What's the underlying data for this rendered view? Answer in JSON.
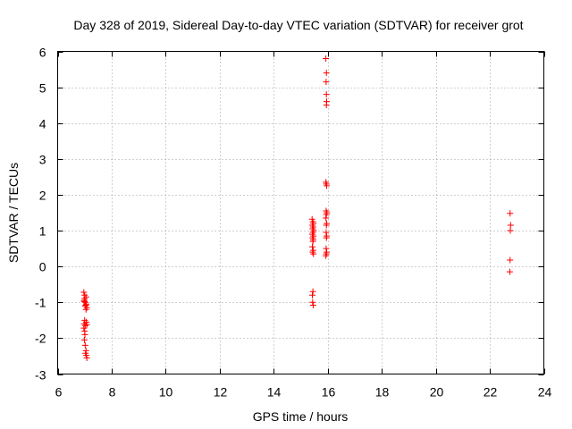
{
  "chart_data": {
    "type": "scatter",
    "title": "Day 328 of 2019, Sidereal Day-to-day VTEC variation (SDTVAR) for receiver grot",
    "xlabel": "GPS time / hours",
    "ylabel": "SDTVAR / TECUs",
    "xlim": [
      6,
      24
    ],
    "ylim": [
      -3,
      6
    ],
    "xticks": [
      6,
      8,
      10,
      12,
      14,
      16,
      18,
      20,
      22,
      24
    ],
    "yticks": [
      -3,
      -2,
      -1,
      0,
      1,
      2,
      3,
      4,
      5,
      6
    ],
    "grid": true,
    "marker": "+",
    "color": "#ff0000",
    "series": [
      {
        "name": "SDTVAR",
        "points": [
          [
            6.97,
            -0.72
          ],
          [
            7.0,
            -0.8
          ],
          [
            7.05,
            -0.85
          ],
          [
            7.0,
            -0.9
          ],
          [
            6.98,
            -0.95
          ],
          [
            7.03,
            -1.0
          ],
          [
            7.06,
            -1.05
          ],
          [
            7.02,
            -1.1
          ],
          [
            7.08,
            -1.15
          ],
          [
            7.05,
            -1.2
          ],
          [
            6.99,
            -0.98
          ],
          [
            7.04,
            -1.08
          ],
          [
            7.0,
            -1.5
          ],
          [
            6.98,
            -1.6
          ],
          [
            7.02,
            -1.65
          ],
          [
            7.06,
            -1.55
          ],
          [
            7.08,
            -1.62
          ],
          [
            6.97,
            -1.72
          ],
          [
            7.0,
            -1.8
          ],
          [
            7.01,
            -1.9
          ],
          [
            6.99,
            -2.05
          ],
          [
            7.02,
            -2.2
          ],
          [
            7.05,
            -2.35
          ],
          [
            7.03,
            -2.42
          ],
          [
            7.06,
            -2.48
          ],
          [
            7.08,
            -2.55
          ],
          [
            15.42,
            1.32
          ],
          [
            15.45,
            1.25
          ],
          [
            15.47,
            1.2
          ],
          [
            15.43,
            1.15
          ],
          [
            15.46,
            1.1
          ],
          [
            15.44,
            1.05
          ],
          [
            15.48,
            1.0
          ],
          [
            15.45,
            0.95
          ],
          [
            15.43,
            0.9
          ],
          [
            15.47,
            0.85
          ],
          [
            15.44,
            0.8
          ],
          [
            15.46,
            0.75
          ],
          [
            15.45,
            0.7
          ],
          [
            15.43,
            0.55
          ],
          [
            15.46,
            0.45
          ],
          [
            15.44,
            0.4
          ],
          [
            15.47,
            0.35
          ],
          [
            15.45,
            -0.7
          ],
          [
            15.43,
            -0.8
          ],
          [
            15.44,
            -1.0
          ],
          [
            15.46,
            -1.08
          ],
          [
            15.93,
            5.8
          ],
          [
            15.95,
            5.4
          ],
          [
            15.94,
            5.15
          ],
          [
            15.95,
            4.8
          ],
          [
            15.96,
            4.6
          ],
          [
            15.95,
            4.5
          ],
          [
            15.93,
            2.35
          ],
          [
            15.95,
            2.3
          ],
          [
            15.96,
            2.25
          ],
          [
            15.94,
            1.55
          ],
          [
            15.97,
            1.5
          ],
          [
            15.95,
            1.45
          ],
          [
            15.93,
            1.35
          ],
          [
            15.96,
            1.2
          ],
          [
            15.95,
            1.15
          ],
          [
            15.94,
            0.95
          ],
          [
            15.96,
            0.85
          ],
          [
            15.95,
            0.8
          ],
          [
            15.94,
            0.5
          ],
          [
            15.96,
            0.4
          ],
          [
            15.95,
            0.35
          ],
          [
            15.93,
            0.3
          ],
          [
            22.75,
            1.48
          ],
          [
            22.77,
            1.15
          ],
          [
            22.76,
            1.0
          ],
          [
            22.75,
            0.18
          ],
          [
            22.74,
            -0.15
          ]
        ]
      }
    ]
  }
}
